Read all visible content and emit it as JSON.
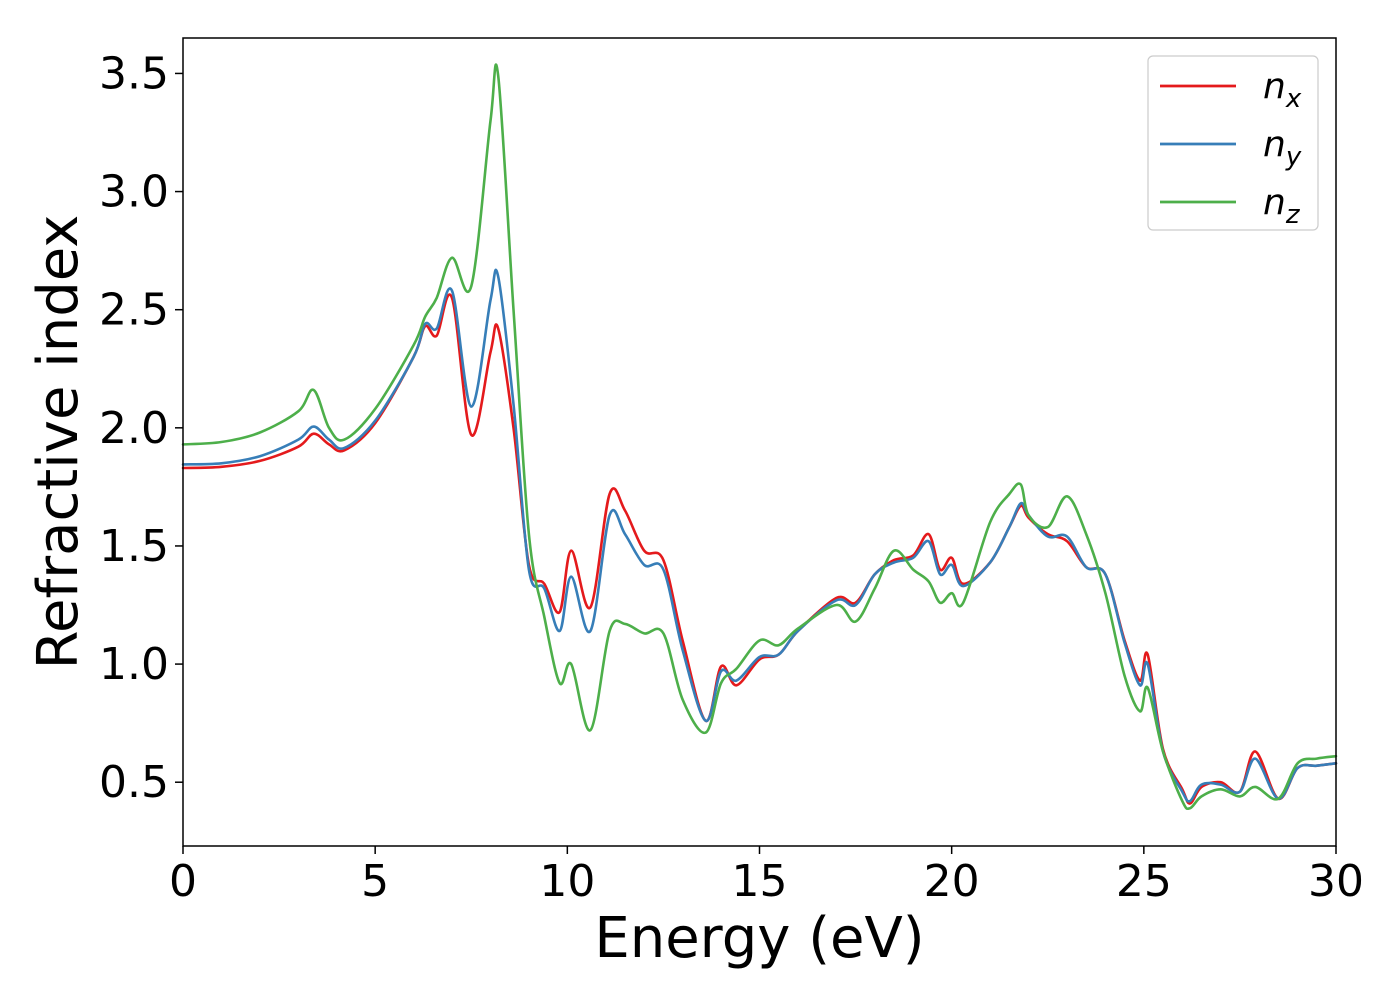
{
  "chart_data": {
    "type": "line",
    "title": "",
    "xlabel": "Energy (eV)",
    "ylabel": "Refractive index",
    "xlim": [
      0,
      30
    ],
    "ylim": [
      0.23,
      3.65
    ],
    "xticks": [
      0,
      5,
      10,
      15,
      20,
      25,
      30
    ],
    "xtick_labels": [
      "0",
      "5",
      "10",
      "15",
      "20",
      "25",
      "30"
    ],
    "yticks": [
      0.5,
      1.0,
      1.5,
      2.0,
      2.5,
      3.0,
      3.5
    ],
    "ytick_labels": [
      "0.5",
      "1.0",
      "1.5",
      "2.0",
      "2.5",
      "3.0",
      "3.5"
    ],
    "grid": false,
    "legend_position": "top-right",
    "series": [
      {
        "name": "n",
        "subscript": "x",
        "color": "#e41a1c",
        "x": [
          0,
          1,
          2,
          3,
          3.4,
          3.8,
          4.2,
          5,
          6,
          6.3,
          6.6,
          7,
          7.5,
          8,
          8.2,
          8.6,
          9,
          9.4,
          9.8,
          10.1,
          10.6,
          11.1,
          11.5,
          12,
          12.5,
          13,
          13.6,
          14,
          14.4,
          15,
          15.5,
          16,
          17,
          17.5,
          18,
          18.5,
          19,
          19.4,
          19.7,
          20,
          20.3,
          21,
          21.5,
          21.8,
          22,
          22.5,
          23,
          23.5,
          24,
          24.5,
          24.9,
          25.1,
          25.5,
          26,
          26.2,
          26.5,
          27,
          27.5,
          27.9,
          28.5,
          29,
          29.5,
          30
        ],
        "y": [
          1.83,
          1.835,
          1.86,
          1.92,
          1.975,
          1.93,
          1.905,
          2.02,
          2.3,
          2.43,
          2.39,
          2.55,
          1.97,
          2.32,
          2.42,
          2.0,
          1.42,
          1.34,
          1.22,
          1.48,
          1.24,
          1.72,
          1.65,
          1.48,
          1.44,
          1.1,
          0.76,
          0.99,
          0.91,
          1.02,
          1.04,
          1.14,
          1.28,
          1.26,
          1.38,
          1.44,
          1.46,
          1.55,
          1.4,
          1.45,
          1.34,
          1.43,
          1.58,
          1.67,
          1.62,
          1.55,
          1.52,
          1.41,
          1.38,
          1.1,
          0.93,
          1.04,
          0.64,
          0.47,
          0.41,
          0.48,
          0.5,
          0.46,
          0.63,
          0.43,
          0.56,
          0.57,
          0.58
        ]
      },
      {
        "name": "n",
        "subscript": "y",
        "color": "#377eb8",
        "x": [
          0,
          1,
          2,
          3,
          3.4,
          3.8,
          4.2,
          5,
          6,
          6.3,
          6.6,
          7,
          7.5,
          8,
          8.2,
          8.6,
          9,
          9.4,
          9.8,
          10.1,
          10.6,
          11.1,
          11.5,
          12,
          12.5,
          13,
          13.6,
          14,
          14.4,
          15,
          15.5,
          16,
          17,
          17.5,
          18,
          18.5,
          19,
          19.4,
          19.7,
          20,
          20.3,
          21,
          21.5,
          21.8,
          22,
          22.5,
          23,
          23.5,
          24,
          24.5,
          24.9,
          25.1,
          25.5,
          26,
          26.2,
          26.5,
          27,
          27.5,
          27.9,
          28.5,
          29,
          29.5,
          30
        ],
        "y": [
          1.845,
          1.85,
          1.88,
          1.95,
          2.005,
          1.95,
          1.915,
          2.03,
          2.3,
          2.44,
          2.42,
          2.58,
          2.09,
          2.54,
          2.64,
          2.1,
          1.4,
          1.32,
          1.14,
          1.37,
          1.14,
          1.63,
          1.55,
          1.42,
          1.4,
          1.06,
          0.76,
          0.97,
          0.93,
          1.03,
          1.04,
          1.14,
          1.27,
          1.25,
          1.38,
          1.43,
          1.45,
          1.52,
          1.38,
          1.42,
          1.33,
          1.43,
          1.58,
          1.68,
          1.63,
          1.54,
          1.54,
          1.41,
          1.38,
          1.09,
          0.91,
          1.0,
          0.63,
          0.46,
          0.42,
          0.49,
          0.49,
          0.46,
          0.6,
          0.43,
          0.56,
          0.57,
          0.58
        ]
      },
      {
        "name": "n",
        "subscript": "z",
        "color": "#4daf4a",
        "x": [
          0,
          1,
          2,
          3,
          3.4,
          3.8,
          4.2,
          5,
          6,
          6.3,
          6.6,
          7,
          7.5,
          8,
          8.2,
          8.6,
          9,
          9.4,
          9.8,
          10.1,
          10.6,
          11.1,
          11.5,
          12,
          12.5,
          13,
          13.6,
          14,
          14.4,
          15,
          15.5,
          16,
          17,
          17.5,
          18,
          18.5,
          19,
          19.4,
          19.7,
          20,
          20.3,
          21,
          21.5,
          21.8,
          22,
          22.5,
          23,
          23.5,
          24,
          24.5,
          24.9,
          25.1,
          25.5,
          26,
          26.2,
          26.5,
          27,
          27.5,
          27.9,
          28.5,
          29,
          29.5,
          30
        ],
        "y": [
          1.93,
          1.94,
          1.98,
          2.07,
          2.16,
          2.0,
          1.95,
          2.08,
          2.35,
          2.47,
          2.55,
          2.72,
          2.6,
          3.3,
          3.49,
          2.5,
          1.55,
          1.2,
          0.92,
          1.0,
          0.72,
          1.14,
          1.17,
          1.13,
          1.13,
          0.85,
          0.71,
          0.92,
          0.98,
          1.1,
          1.08,
          1.15,
          1.25,
          1.18,
          1.32,
          1.48,
          1.4,
          1.35,
          1.26,
          1.3,
          1.26,
          1.6,
          1.72,
          1.76,
          1.63,
          1.58,
          1.71,
          1.55,
          1.3,
          0.95,
          0.8,
          0.9,
          0.63,
          0.42,
          0.39,
          0.44,
          0.47,
          0.44,
          0.48,
          0.43,
          0.58,
          0.6,
          0.61
        ]
      }
    ]
  }
}
